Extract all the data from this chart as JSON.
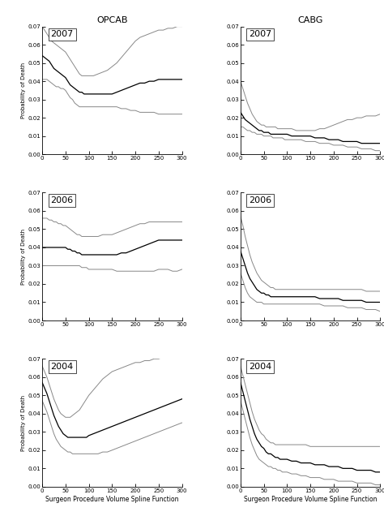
{
  "titles_col": [
    "OPCAB",
    "CABG"
  ],
  "years": [
    "2007",
    "2006",
    "2004"
  ],
  "xlabel": "Surgeon Procedure Volume Spline Function",
  "ylabel": "Probability of Death",
  "xlim": [
    0,
    300
  ],
  "ylim": [
    0.0,
    0.07
  ],
  "yticks": [
    0.0,
    0.01,
    0.02,
    0.03,
    0.04,
    0.05,
    0.06,
    0.07
  ],
  "xticks": [
    0,
    50,
    100,
    150,
    200,
    250,
    300
  ],
  "line_color": "#000000",
  "ci_color": "#888888",
  "curves": {
    "OPCAB_2007": {
      "x": [
        0,
        5,
        10,
        15,
        20,
        25,
        30,
        35,
        40,
        45,
        50,
        55,
        60,
        65,
        70,
        75,
        80,
        85,
        90,
        95,
        100,
        110,
        120,
        130,
        140,
        150,
        160,
        170,
        180,
        190,
        200,
        210,
        220,
        230,
        240,
        250,
        260,
        270,
        280,
        290,
        300
      ],
      "mid": [
        0.054,
        0.053,
        0.052,
        0.051,
        0.049,
        0.047,
        0.046,
        0.045,
        0.044,
        0.043,
        0.042,
        0.04,
        0.038,
        0.037,
        0.036,
        0.035,
        0.034,
        0.034,
        0.033,
        0.033,
        0.033,
        0.033,
        0.033,
        0.033,
        0.033,
        0.033,
        0.034,
        0.035,
        0.036,
        0.037,
        0.038,
        0.039,
        0.039,
        0.04,
        0.04,
        0.041,
        0.041,
        0.041,
        0.041,
        0.041,
        0.041
      ],
      "upper": [
        0.07,
        0.068,
        0.066,
        0.064,
        0.062,
        0.061,
        0.06,
        0.059,
        0.058,
        0.057,
        0.056,
        0.054,
        0.052,
        0.05,
        0.048,
        0.046,
        0.044,
        0.043,
        0.043,
        0.043,
        0.043,
        0.043,
        0.044,
        0.045,
        0.046,
        0.048,
        0.05,
        0.053,
        0.056,
        0.059,
        0.062,
        0.064,
        0.065,
        0.066,
        0.067,
        0.068,
        0.068,
        0.069,
        0.069,
        0.07,
        0.07
      ],
      "lower": [
        0.041,
        0.041,
        0.041,
        0.04,
        0.039,
        0.038,
        0.037,
        0.037,
        0.036,
        0.036,
        0.035,
        0.033,
        0.031,
        0.03,
        0.028,
        0.027,
        0.026,
        0.026,
        0.026,
        0.026,
        0.026,
        0.026,
        0.026,
        0.026,
        0.026,
        0.026,
        0.026,
        0.025,
        0.025,
        0.024,
        0.024,
        0.023,
        0.023,
        0.023,
        0.023,
        0.022,
        0.022,
        0.022,
        0.022,
        0.022,
        0.022
      ]
    },
    "OPCAB_2006": {
      "x": [
        0,
        5,
        10,
        15,
        20,
        25,
        30,
        35,
        40,
        45,
        50,
        55,
        60,
        65,
        70,
        75,
        80,
        85,
        90,
        95,
        100,
        110,
        120,
        130,
        140,
        150,
        160,
        170,
        180,
        190,
        200,
        210,
        220,
        230,
        240,
        250,
        260,
        270,
        280,
        290,
        300
      ],
      "mid": [
        0.04,
        0.04,
        0.04,
        0.04,
        0.04,
        0.04,
        0.04,
        0.04,
        0.04,
        0.04,
        0.04,
        0.039,
        0.039,
        0.038,
        0.038,
        0.037,
        0.037,
        0.036,
        0.036,
        0.036,
        0.036,
        0.036,
        0.036,
        0.036,
        0.036,
        0.036,
        0.036,
        0.037,
        0.037,
        0.038,
        0.039,
        0.04,
        0.041,
        0.042,
        0.043,
        0.044,
        0.044,
        0.044,
        0.044,
        0.044,
        0.044
      ],
      "upper": [
        0.056,
        0.056,
        0.056,
        0.055,
        0.055,
        0.054,
        0.054,
        0.053,
        0.053,
        0.052,
        0.052,
        0.051,
        0.05,
        0.049,
        0.048,
        0.047,
        0.047,
        0.046,
        0.046,
        0.046,
        0.046,
        0.046,
        0.046,
        0.047,
        0.047,
        0.047,
        0.048,
        0.049,
        0.05,
        0.051,
        0.052,
        0.053,
        0.053,
        0.054,
        0.054,
        0.054,
        0.054,
        0.054,
        0.054,
        0.054,
        0.054
      ],
      "lower": [
        0.03,
        0.03,
        0.03,
        0.03,
        0.03,
        0.03,
        0.03,
        0.03,
        0.03,
        0.03,
        0.03,
        0.03,
        0.03,
        0.03,
        0.03,
        0.03,
        0.03,
        0.029,
        0.029,
        0.029,
        0.028,
        0.028,
        0.028,
        0.028,
        0.028,
        0.028,
        0.027,
        0.027,
        0.027,
        0.027,
        0.027,
        0.027,
        0.027,
        0.027,
        0.027,
        0.028,
        0.028,
        0.028,
        0.027,
        0.027,
        0.028
      ]
    },
    "OPCAB_2004": {
      "x": [
        0,
        5,
        10,
        15,
        20,
        25,
        30,
        35,
        40,
        45,
        50,
        55,
        60,
        65,
        70,
        75,
        80,
        85,
        90,
        95,
        100,
        110,
        120,
        130,
        140,
        150,
        160,
        170,
        180,
        190,
        200,
        210,
        220,
        230,
        240,
        250,
        260,
        270,
        280,
        290,
        300
      ],
      "mid": [
        0.057,
        0.054,
        0.051,
        0.047,
        0.043,
        0.039,
        0.036,
        0.033,
        0.031,
        0.029,
        0.028,
        0.027,
        0.027,
        0.027,
        0.027,
        0.027,
        0.027,
        0.027,
        0.027,
        0.027,
        0.028,
        0.029,
        0.03,
        0.031,
        0.032,
        0.033,
        0.034,
        0.035,
        0.036,
        0.037,
        0.038,
        0.039,
        0.04,
        0.041,
        0.042,
        0.043,
        0.044,
        0.045,
        0.046,
        0.047,
        0.048
      ],
      "upper": [
        0.066,
        0.063,
        0.06,
        0.056,
        0.052,
        0.048,
        0.045,
        0.042,
        0.04,
        0.039,
        0.038,
        0.038,
        0.038,
        0.039,
        0.04,
        0.041,
        0.042,
        0.044,
        0.046,
        0.048,
        0.05,
        0.053,
        0.056,
        0.059,
        0.061,
        0.063,
        0.064,
        0.065,
        0.066,
        0.067,
        0.068,
        0.068,
        0.069,
        0.069,
        0.07,
        0.07,
        0.071,
        0.071,
        0.072,
        0.072,
        0.072
      ],
      "lower": [
        0.047,
        0.044,
        0.041,
        0.037,
        0.033,
        0.029,
        0.026,
        0.024,
        0.022,
        0.021,
        0.02,
        0.019,
        0.019,
        0.018,
        0.018,
        0.018,
        0.018,
        0.018,
        0.018,
        0.018,
        0.018,
        0.018,
        0.018,
        0.019,
        0.019,
        0.02,
        0.021,
        0.022,
        0.023,
        0.024,
        0.025,
        0.026,
        0.027,
        0.028,
        0.029,
        0.03,
        0.031,
        0.032,
        0.033,
        0.034,
        0.035
      ]
    },
    "CABG_2007": {
      "x": [
        0,
        5,
        10,
        15,
        20,
        25,
        30,
        35,
        40,
        45,
        50,
        55,
        60,
        65,
        70,
        75,
        80,
        85,
        90,
        95,
        100,
        110,
        120,
        130,
        140,
        150,
        160,
        170,
        180,
        190,
        200,
        210,
        220,
        230,
        240,
        250,
        260,
        270,
        280,
        290,
        300
      ],
      "mid": [
        0.023,
        0.021,
        0.019,
        0.018,
        0.017,
        0.016,
        0.015,
        0.014,
        0.013,
        0.013,
        0.012,
        0.012,
        0.012,
        0.011,
        0.011,
        0.011,
        0.011,
        0.011,
        0.011,
        0.011,
        0.011,
        0.01,
        0.01,
        0.01,
        0.01,
        0.01,
        0.009,
        0.009,
        0.009,
        0.008,
        0.008,
        0.008,
        0.007,
        0.007,
        0.007,
        0.007,
        0.006,
        0.006,
        0.006,
        0.006,
        0.006
      ],
      "upper": [
        0.04,
        0.036,
        0.032,
        0.028,
        0.025,
        0.022,
        0.02,
        0.018,
        0.017,
        0.016,
        0.016,
        0.015,
        0.015,
        0.015,
        0.015,
        0.015,
        0.014,
        0.014,
        0.014,
        0.014,
        0.014,
        0.014,
        0.013,
        0.013,
        0.013,
        0.013,
        0.013,
        0.014,
        0.014,
        0.015,
        0.016,
        0.017,
        0.018,
        0.019,
        0.019,
        0.02,
        0.02,
        0.021,
        0.021,
        0.021,
        0.022
      ],
      "lower": [
        0.015,
        0.015,
        0.014,
        0.013,
        0.013,
        0.012,
        0.012,
        0.011,
        0.011,
        0.011,
        0.01,
        0.01,
        0.01,
        0.01,
        0.009,
        0.009,
        0.009,
        0.009,
        0.009,
        0.008,
        0.008,
        0.008,
        0.008,
        0.008,
        0.007,
        0.007,
        0.007,
        0.006,
        0.006,
        0.006,
        0.005,
        0.005,
        0.005,
        0.004,
        0.004,
        0.004,
        0.003,
        0.003,
        0.003,
        0.002,
        0.002
      ]
    },
    "CABG_2006": {
      "x": [
        0,
        5,
        10,
        15,
        20,
        25,
        30,
        35,
        40,
        45,
        50,
        55,
        60,
        65,
        70,
        75,
        80,
        85,
        90,
        95,
        100,
        110,
        120,
        130,
        140,
        150,
        160,
        170,
        180,
        190,
        200,
        210,
        220,
        230,
        240,
        250,
        260,
        270,
        280,
        290,
        300
      ],
      "mid": [
        0.038,
        0.034,
        0.03,
        0.026,
        0.023,
        0.021,
        0.019,
        0.017,
        0.016,
        0.015,
        0.015,
        0.014,
        0.014,
        0.013,
        0.013,
        0.013,
        0.013,
        0.013,
        0.013,
        0.013,
        0.013,
        0.013,
        0.013,
        0.013,
        0.013,
        0.013,
        0.013,
        0.012,
        0.012,
        0.012,
        0.012,
        0.012,
        0.011,
        0.011,
        0.011,
        0.011,
        0.011,
        0.01,
        0.01,
        0.01,
        0.01
      ],
      "upper": [
        0.057,
        0.052,
        0.046,
        0.041,
        0.036,
        0.032,
        0.029,
        0.026,
        0.024,
        0.022,
        0.021,
        0.02,
        0.019,
        0.018,
        0.018,
        0.017,
        0.017,
        0.017,
        0.017,
        0.017,
        0.017,
        0.017,
        0.017,
        0.017,
        0.017,
        0.017,
        0.017,
        0.017,
        0.017,
        0.017,
        0.017,
        0.017,
        0.017,
        0.017,
        0.017,
        0.017,
        0.017,
        0.016,
        0.016,
        0.016,
        0.016
      ],
      "lower": [
        0.026,
        0.022,
        0.018,
        0.015,
        0.013,
        0.012,
        0.011,
        0.01,
        0.01,
        0.01,
        0.009,
        0.009,
        0.009,
        0.009,
        0.009,
        0.009,
        0.009,
        0.009,
        0.009,
        0.009,
        0.009,
        0.009,
        0.009,
        0.009,
        0.009,
        0.009,
        0.009,
        0.009,
        0.008,
        0.008,
        0.008,
        0.008,
        0.008,
        0.007,
        0.007,
        0.007,
        0.007,
        0.006,
        0.006,
        0.006,
        0.005
      ]
    },
    "CABG_2004": {
      "x": [
        0,
        5,
        10,
        15,
        20,
        25,
        30,
        35,
        40,
        45,
        50,
        55,
        60,
        65,
        70,
        75,
        80,
        85,
        90,
        95,
        100,
        110,
        120,
        130,
        140,
        150,
        160,
        170,
        180,
        190,
        200,
        210,
        220,
        230,
        240,
        250,
        260,
        270,
        280,
        290,
        300
      ],
      "mid": [
        0.057,
        0.052,
        0.047,
        0.042,
        0.037,
        0.033,
        0.029,
        0.026,
        0.024,
        0.022,
        0.021,
        0.019,
        0.018,
        0.018,
        0.017,
        0.016,
        0.016,
        0.015,
        0.015,
        0.015,
        0.015,
        0.014,
        0.014,
        0.013,
        0.013,
        0.013,
        0.012,
        0.012,
        0.012,
        0.011,
        0.011,
        0.011,
        0.01,
        0.01,
        0.01,
        0.009,
        0.009,
        0.009,
        0.009,
        0.008,
        0.008
      ],
      "upper": [
        0.066,
        0.061,
        0.056,
        0.051,
        0.046,
        0.041,
        0.037,
        0.034,
        0.031,
        0.029,
        0.028,
        0.026,
        0.025,
        0.024,
        0.024,
        0.023,
        0.023,
        0.023,
        0.023,
        0.023,
        0.023,
        0.023,
        0.023,
        0.023,
        0.023,
        0.022,
        0.022,
        0.022,
        0.022,
        0.022,
        0.022,
        0.022,
        0.022,
        0.022,
        0.022,
        0.022,
        0.022,
        0.022,
        0.022,
        0.022,
        0.022
      ],
      "lower": [
        0.047,
        0.042,
        0.037,
        0.032,
        0.027,
        0.023,
        0.02,
        0.017,
        0.015,
        0.014,
        0.013,
        0.012,
        0.011,
        0.011,
        0.01,
        0.01,
        0.009,
        0.009,
        0.008,
        0.008,
        0.008,
        0.007,
        0.007,
        0.006,
        0.006,
        0.005,
        0.005,
        0.005,
        0.004,
        0.004,
        0.004,
        0.003,
        0.003,
        0.003,
        0.003,
        0.002,
        0.002,
        0.002,
        0.002,
        0.001,
        0.001
      ]
    }
  }
}
